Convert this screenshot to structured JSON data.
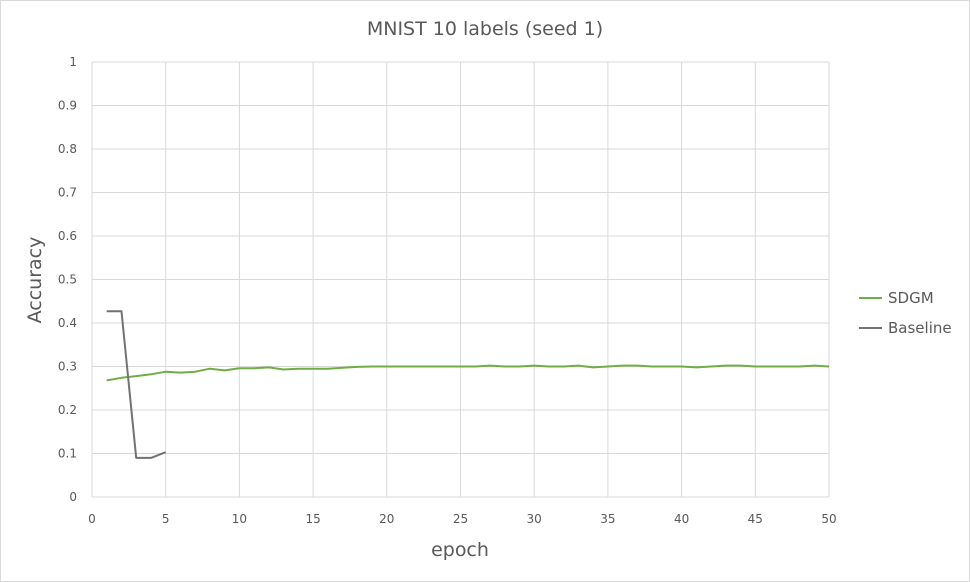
{
  "chart_data": {
    "type": "line",
    "title": "MNIST 10 labels (seed 1)",
    "xlabel": "epoch",
    "ylabel": "Accuracy",
    "xlim": [
      0,
      50
    ],
    "ylim": [
      0,
      1
    ],
    "x_ticks": [
      "0",
      "5",
      "10",
      "15",
      "20",
      "25",
      "30",
      "35",
      "40",
      "45",
      "50"
    ],
    "y_ticks": [
      "0",
      "0.1",
      "0.2",
      "0.3",
      "0.4",
      "0.5",
      "0.6",
      "0.7",
      "0.8",
      "0.9",
      "1"
    ],
    "grid": true,
    "legend_position": "right",
    "series": [
      {
        "name": "SDGM",
        "color": "#70ad47",
        "x": [
          1,
          2,
          3,
          4,
          5,
          6,
          7,
          8,
          9,
          10,
          11,
          12,
          13,
          14,
          15,
          16,
          17,
          18,
          19,
          20,
          21,
          22,
          23,
          24,
          25,
          26,
          27,
          28,
          29,
          30,
          31,
          32,
          33,
          34,
          35,
          36,
          37,
          38,
          39,
          40,
          41,
          42,
          43,
          44,
          45,
          46,
          47,
          48,
          49,
          50
        ],
        "y": [
          0.268,
          0.274,
          0.278,
          0.282,
          0.288,
          0.286,
          0.288,
          0.295,
          0.291,
          0.296,
          0.296,
          0.298,
          0.293,
          0.295,
          0.295,
          0.295,
          0.297,
          0.299,
          0.3,
          0.3,
          0.3,
          0.3,
          0.3,
          0.3,
          0.3,
          0.3,
          0.302,
          0.3,
          0.3,
          0.302,
          0.3,
          0.3,
          0.302,
          0.298,
          0.3,
          0.302,
          0.302,
          0.3,
          0.3,
          0.3,
          0.298,
          0.3,
          0.302,
          0.302,
          0.3,
          0.3,
          0.3,
          0.3,
          0.302,
          0.3
        ]
      },
      {
        "name": "Baseline",
        "color": "#767171",
        "x": [
          1,
          2,
          3,
          4,
          5
        ],
        "y": [
          0.427,
          0.427,
          0.09,
          0.09,
          0.103
        ]
      }
    ]
  }
}
